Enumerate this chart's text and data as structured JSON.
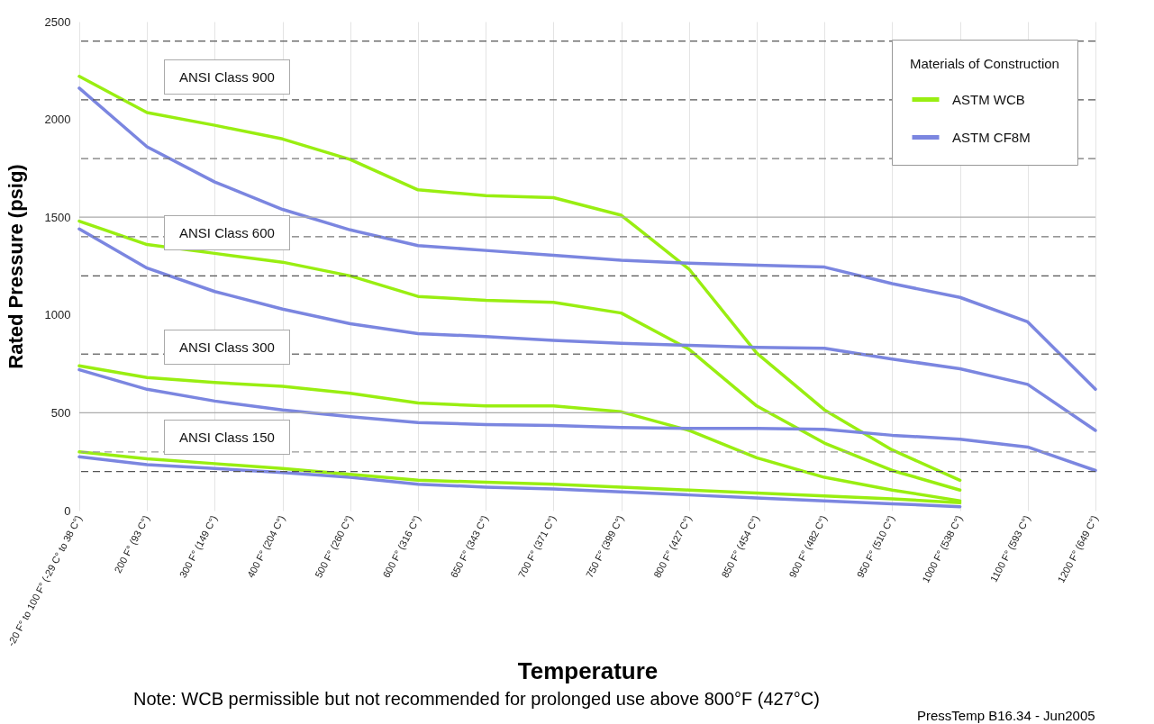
{
  "chart_data": {
    "type": "line",
    "xlabel": "Temperature",
    "ylabel": "Rated Pressure (psig)",
    "legend_title": "Materials of Construction",
    "legend": "top right",
    "grid": "x",
    "categories": [
      "-20 F° to 100 F° (-29 C° to 38 C°)",
      "200 F° (93 C°)",
      "300 F° (149 C°)",
      "400 F° (204 C°)",
      "500 F° (260 C°)",
      "600 F° (316 C°)",
      "650 F° (343 C°)",
      "700 F° (371 C°)",
      "750 F° (399 C°)",
      "800 F° (427 C°)",
      "850 F° (454 C°)",
      "900 F° (482 C°)",
      "950 F° (510 C°)",
      "1000 F° (538 C°)",
      "1100 F° (593 C°)",
      "1200 F° (649 C°)"
    ],
    "ylim": [
      0,
      2500
    ],
    "yticks": [
      0,
      500,
      1000,
      1500,
      2000,
      2500
    ],
    "series": [
      {
        "name": "ASTM WCB",
        "color": "#99ee11",
        "values": [
          2220,
          2035,
          1970,
          1900,
          1795,
          1640,
          1610,
          1600,
          1510,
          1235,
          805,
          515,
          310,
          155,
          null,
          null
        ]
      },
      {
        "name": "ASTM CF8M",
        "color": "#7b86e0",
        "values": [
          2160,
          1860,
          1680,
          1540,
          1435,
          1355,
          1330,
          1305,
          1280,
          1265,
          1255,
          1245,
          1160,
          1090,
          965,
          620
        ]
      },
      {
        "color": "#99ee11",
        "values": [
          1480,
          1360,
          1315,
          1270,
          1200,
          1095,
          1075,
          1065,
          1010,
          825,
          535,
          345,
          205,
          105,
          null,
          null
        ]
      },
      {
        "color": "#7b86e0",
        "values": [
          1440,
          1240,
          1120,
          1030,
          955,
          905,
          890,
          870,
          855,
          845,
          835,
          830,
          775,
          725,
          645,
          410
        ]
      },
      {
        "color": "#99ee11",
        "values": [
          740,
          680,
          655,
          635,
          600,
          550,
          535,
          535,
          505,
          410,
          270,
          170,
          105,
          50,
          null,
          null
        ]
      },
      {
        "color": "#7b86e0",
        "values": [
          720,
          620,
          560,
          515,
          480,
          450,
          440,
          435,
          425,
          420,
          420,
          415,
          385,
          365,
          325,
          205
        ]
      },
      {
        "color": "#7b86e0",
        "values": [
          275,
          235,
          215,
          195,
          170,
          135,
          120,
          110,
          95,
          80,
          65,
          50,
          35,
          20,
          null,
          null
        ]
      },
      {
        "color": "#99ee11",
        "values": [
          300,
          265,
          240,
          215,
          185,
          155,
          145,
          135,
          120,
          105,
          90,
          75,
          60,
          40,
          null,
          null
        ]
      }
    ],
    "ref_lines": [
      {
        "axis": "y",
        "value": 2400,
        "color": "#555555",
        "line_style": "dashed"
      },
      {
        "axis": "y",
        "value": 2100,
        "color": "#555555",
        "line_style": "dashed"
      },
      {
        "axis": "y",
        "value": 1800,
        "color": "#777777",
        "line_style": "dashed"
      },
      {
        "axis": "y",
        "value": 1500,
        "color": "#aaaaaa",
        "line_style": "solid"
      },
      {
        "axis": "y",
        "value": 1400,
        "color": "#777777",
        "line_style": "dashed"
      },
      {
        "axis": "y",
        "value": 1200,
        "color": "#555555",
        "line_style": "dashed"
      },
      {
        "axis": "y",
        "value": 800,
        "color": "#777777",
        "line_style": "dashed"
      },
      {
        "axis": "y",
        "value": 500,
        "color": "#aaaaaa",
        "line_style": "solid"
      },
      {
        "axis": "y",
        "value": 300,
        "color": "#999999",
        "line_style": "dashed"
      },
      {
        "axis": "y",
        "value": 200,
        "color": "#555555",
        "line_style": "dashed"
      }
    ],
    "annotations": [
      "ANSI Class 900",
      "ANSI Class 600",
      "ANSI Class 300",
      "ANSI Class 150",
      "Note: WCB permissible but not recommended for prolonged use above 800°F (427°C)",
      "PressTemp B16.34 - Jun2005"
    ]
  }
}
